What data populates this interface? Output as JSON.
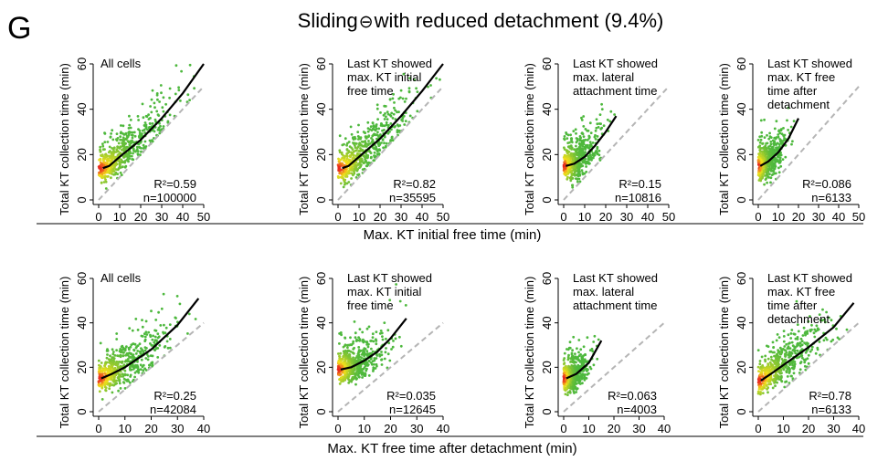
{
  "panel_letter": "G",
  "title_prefix": "Sliding",
  "title_symbol": "⊖",
  "title_suffix": "with reduced detachment (9.4%)",
  "colors": {
    "low": "#4db83d",
    "mid": "#f5e11b",
    "high": "#e8211e",
    "fit": "#000000",
    "diag": "#b5b5b5"
  },
  "chart_data": [
    {
      "type": "scatter",
      "row": 0,
      "col": 0,
      "title": "All cells",
      "ylabel": "Total KT collection time (min)",
      "xlim": [
        0,
        50
      ],
      "ylim": [
        0,
        60
      ],
      "xticks": [
        0,
        10,
        20,
        30,
        40,
        50
      ],
      "yticks": [
        0,
        20,
        40,
        60
      ],
      "fit": [
        [
          2,
          14
        ],
        [
          5,
          15
        ],
        [
          10,
          19
        ],
        [
          20,
          26.5
        ],
        [
          30,
          36
        ],
        [
          40,
          47
        ],
        [
          50,
          60
        ]
      ],
      "fit_xmax": 50,
      "cloud_xmax": 50,
      "r2": "R²=0.59",
      "n": "n=100000"
    },
    {
      "type": "scatter",
      "row": 0,
      "col": 1,
      "title": "Last KT showed max. KT initial free time",
      "ylabel": "Total KT collection time (min)",
      "xlim": [
        0,
        50
      ],
      "ylim": [
        0,
        60
      ],
      "xticks": [
        0,
        10,
        20,
        30,
        40,
        50
      ],
      "yticks": [
        0,
        20,
        40,
        60
      ],
      "fit": [
        [
          2,
          14
        ],
        [
          5,
          15
        ],
        [
          10,
          19
        ],
        [
          20,
          27
        ],
        [
          30,
          37
        ],
        [
          40,
          48
        ],
        [
          50,
          60
        ]
      ],
      "fit_xmax": 50,
      "cloud_xmax": 50,
      "r2": "R²=0.82",
      "n": "n=35595"
    },
    {
      "type": "scatter",
      "row": 0,
      "col": 2,
      "title": "Last KT showed max. lateral attachment time",
      "ylabel": "Total KT collection time (min)",
      "xlim": [
        0,
        50
      ],
      "ylim": [
        0,
        60
      ],
      "xticks": [
        0,
        10,
        20,
        30,
        40,
        50
      ],
      "yticks": [
        0,
        20,
        40,
        60
      ],
      "fit": [
        [
          1,
          15
        ],
        [
          5,
          16
        ],
        [
          10,
          19
        ],
        [
          15,
          24
        ],
        [
          20,
          30
        ],
        [
          25,
          37
        ]
      ],
      "fit_xmax": 25,
      "cloud_xmax": 25,
      "r2": "R²=0.15",
      "n": "n=10816"
    },
    {
      "type": "scatter",
      "row": 0,
      "col": 3,
      "title": "Last KT showed max. KT free time after detachment",
      "ylabel": "Total KT collection time (min)",
      "xlim": [
        0,
        50
      ],
      "ylim": [
        0,
        60
      ],
      "xticks": [
        0,
        10,
        20,
        30,
        40,
        50
      ],
      "yticks": [
        0,
        20,
        40,
        60
      ],
      "fit": [
        [
          1,
          15
        ],
        [
          5,
          17
        ],
        [
          10,
          21
        ],
        [
          15,
          27
        ],
        [
          20,
          36
        ]
      ],
      "fit_xmax": 20,
      "cloud_xmax": 20,
      "r2": "R²=0.086",
      "n": "n=6133"
    },
    {
      "type": "scatter",
      "row": 1,
      "col": 0,
      "title": "All cells",
      "ylabel": "Total KT collection time (min)",
      "xlim": [
        0,
        40
      ],
      "ylim": [
        0,
        60
      ],
      "xticks": [
        0,
        10,
        20,
        30,
        40
      ],
      "yticks": [
        0,
        20,
        40,
        60
      ],
      "fit": [
        [
          1,
          15
        ],
        [
          5,
          17
        ],
        [
          10,
          20
        ],
        [
          20,
          28
        ],
        [
          30,
          39
        ],
        [
          38,
          51
        ]
      ],
      "fit_xmax": 38,
      "cloud_xmax": 38,
      "r2": "R²=0.25",
      "n": "n=42084"
    },
    {
      "type": "scatter",
      "row": 1,
      "col": 1,
      "title": "Last KT showed max. KT initial free time",
      "ylabel": "Total KT collection time (min)",
      "xlim": [
        0,
        40
      ],
      "ylim": [
        0,
        60
      ],
      "xticks": [
        0,
        10,
        20,
        30,
        40
      ],
      "yticks": [
        0,
        20,
        40,
        60
      ],
      "fit": [
        [
          1,
          19
        ],
        [
          5,
          20
        ],
        [
          10,
          23
        ],
        [
          15,
          27
        ],
        [
          20,
          33
        ],
        [
          26,
          42
        ]
      ],
      "fit_xmax": 26,
      "cloud_xmax": 26,
      "r2": "R²=0.035",
      "n": "n=12645"
    },
    {
      "type": "scatter",
      "row": 1,
      "col": 2,
      "title": "Last KT showed max. lateral attachment time",
      "ylabel": "Total KT collection time (min)",
      "xlim": [
        0,
        40
      ],
      "ylim": [
        0,
        60
      ],
      "xticks": [
        0,
        10,
        20,
        30,
        40
      ],
      "yticks": [
        0,
        20,
        40,
        60
      ],
      "fit": [
        [
          1,
          15
        ],
        [
          5,
          17
        ],
        [
          10,
          22
        ],
        [
          15,
          32
        ]
      ],
      "fit_xmax": 15,
      "cloud_xmax": 15,
      "r2": "R²=0.063",
      "n": "n=4003"
    },
    {
      "type": "scatter",
      "row": 1,
      "col": 3,
      "title": "Last KT showed max. KT free time after detachment",
      "ylabel": "Total KT collection time (min)",
      "xlim": [
        0,
        40
      ],
      "ylim": [
        0,
        60
      ],
      "xticks": [
        0,
        10,
        20,
        30,
        40
      ],
      "yticks": [
        0,
        20,
        40,
        60
      ],
      "fit": [
        [
          1,
          14
        ],
        [
          5,
          17
        ],
        [
          10,
          21
        ],
        [
          20,
          29
        ],
        [
          30,
          38
        ],
        [
          38,
          49
        ]
      ],
      "fit_xmax": 38,
      "cloud_xmax": 38,
      "r2": "R²=0.78",
      "n": "n=6133"
    }
  ],
  "row_xlabels": [
    "Max. KT initial free time (min)",
    "Max. KT free time after detachment (min)"
  ]
}
